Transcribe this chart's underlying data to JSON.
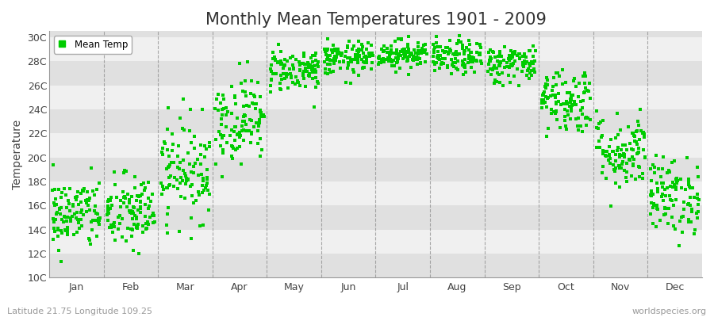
{
  "title": "Monthly Mean Temperatures 1901 - 2009",
  "ylabel": "Temperature",
  "ytick_labels": [
    "10C",
    "12C",
    "14C",
    "16C",
    "18C",
    "20C",
    "22C",
    "24C",
    "26C",
    "28C",
    "30C"
  ],
  "ytick_values": [
    10,
    12,
    14,
    16,
    18,
    20,
    22,
    24,
    26,
    28,
    30
  ],
  "ylim": [
    10,
    30.5
  ],
  "months": [
    "Jan",
    "Feb",
    "Mar",
    "Apr",
    "May",
    "Jun",
    "Jul",
    "Aug",
    "Sep",
    "Oct",
    "Nov",
    "Dec"
  ],
  "dot_color": "#00cc00",
  "background_color": "#ffffff",
  "plot_bg_color": "#e0e0e0",
  "stripe_color": "#f0f0f0",
  "grid_color": "#888888",
  "title_fontsize": 15,
  "label_fontsize": 10,
  "tick_fontsize": 9,
  "footnote_left": "Latitude 21.75 Longitude 109.25",
  "footnote_right": "worldspecies.org",
  "n_years": 109,
  "monthly_means": [
    15.3,
    15.4,
    19.0,
    23.2,
    27.3,
    28.2,
    28.6,
    28.3,
    27.8,
    24.8,
    20.5,
    16.8
  ],
  "monthly_stds": [
    1.5,
    1.6,
    2.1,
    1.8,
    0.9,
    0.7,
    0.6,
    0.7,
    0.8,
    1.4,
    1.6,
    1.6
  ],
  "random_seed": 42
}
